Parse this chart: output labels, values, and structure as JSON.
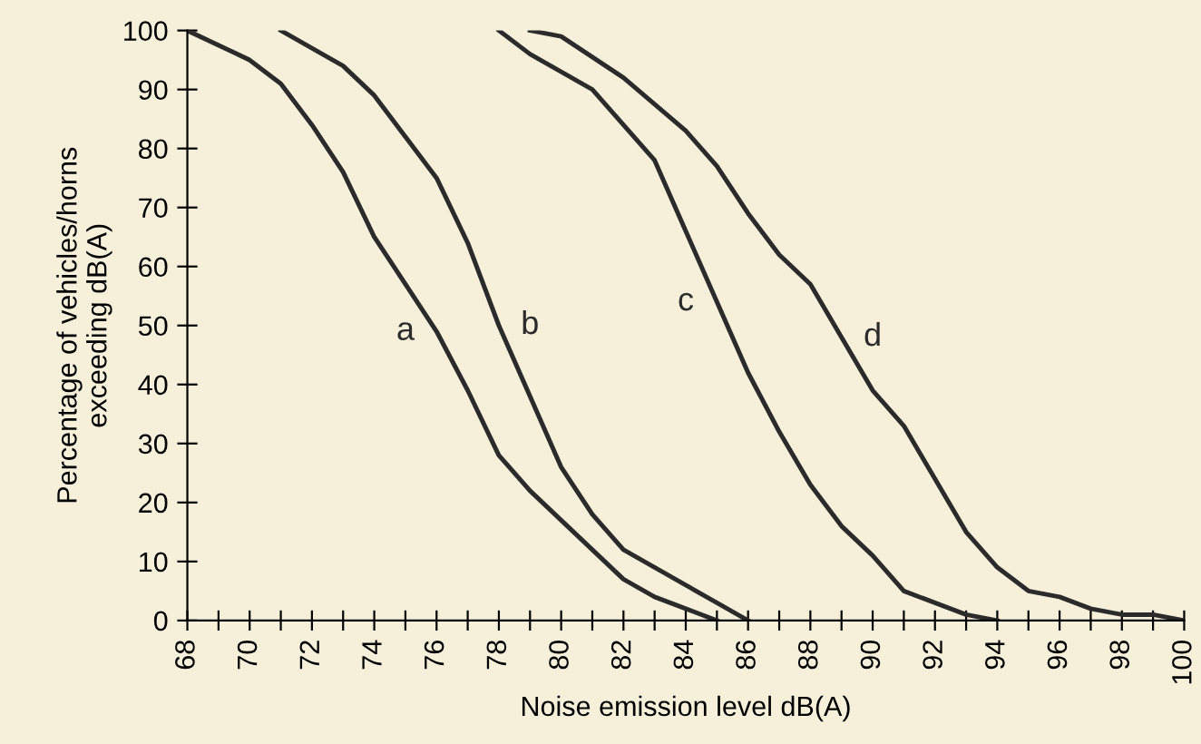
{
  "chart_data": {
    "type": "line",
    "xlabel": "Noise emission level dB(A)",
    "ylabel": "Percentage of vehicles/horns\nexceeding dB(A)",
    "xlim": [
      68,
      100
    ],
    "ylim": [
      0,
      100
    ],
    "xticks": [
      68,
      {
        "value": 69,
        "label": null
      },
      70,
      {
        "value": 71,
        "label": null
      },
      72,
      {
        "value": 73,
        "label": null
      },
      74,
      {
        "value": 75,
        "label": null
      },
      76,
      {
        "value": 77,
        "label": null
      },
      78,
      {
        "value": 79,
        "label": null
      },
      80,
      {
        "value": 81,
        "label": null
      },
      82,
      {
        "value": 83,
        "label": null
      },
      84,
      {
        "value": 85,
        "label": null
      },
      86,
      {
        "value": 87,
        "label": null
      },
      88,
      {
        "value": 89,
        "label": null
      },
      90,
      {
        "value": 91,
        "label": null
      },
      92,
      {
        "value": 93,
        "label": null
      },
      94,
      {
        "value": 95,
        "label": null
      },
      96,
      {
        "value": 97,
        "label": null
      },
      98,
      {
        "value": 99,
        "label": null
      },
      100
    ],
    "yticks": [
      0,
      10,
      20,
      30,
      40,
      50,
      60,
      70,
      80,
      90,
      100
    ],
    "grid": false,
    "legend": false,
    "marker": "none",
    "line_style": "solid",
    "series": [
      {
        "name": "a",
        "color": "#2b2b2b",
        "x": [
          68,
          70,
          71,
          72,
          73,
          74,
          75,
          76,
          77,
          78,
          79,
          80,
          81,
          82,
          83,
          84,
          85
        ],
        "values": [
          100,
          95,
          91,
          84,
          76,
          65,
          57,
          49,
          39,
          28,
          22,
          17,
          12,
          7,
          4,
          2,
          0
        ]
      },
      {
        "name": "b",
        "color": "#2b2b2b",
        "x": [
          71,
          72,
          73,
          74,
          75,
          76,
          77,
          78,
          79,
          80,
          81,
          82,
          83,
          84,
          85,
          86
        ],
        "values": [
          100,
          97,
          94,
          89,
          82,
          75,
          64,
          50,
          38,
          26,
          18,
          12,
          9,
          6,
          3,
          0
        ]
      },
      {
        "name": "c",
        "color": "#2b2b2b",
        "x": [
          78,
          79,
          80,
          81,
          82,
          83,
          84,
          85,
          86,
          87,
          88,
          89,
          90,
          91,
          92,
          93,
          94
        ],
        "values": [
          100,
          96,
          93,
          90,
          84,
          78,
          66,
          54,
          42,
          32,
          23,
          16,
          11,
          5,
          3,
          1,
          0
        ]
      },
      {
        "name": "d",
        "color": "#2b2b2b",
        "x": [
          79,
          80,
          82,
          84,
          85,
          86,
          87,
          88,
          89,
          90,
          91,
          92,
          93,
          94,
          95,
          96,
          97,
          98,
          99,
          100
        ],
        "values": [
          100,
          99,
          92,
          83,
          77,
          69,
          62,
          57,
          48,
          39,
          33,
          24,
          15,
          9,
          5,
          4,
          2,
          1,
          1,
          0
        ]
      }
    ]
  }
}
